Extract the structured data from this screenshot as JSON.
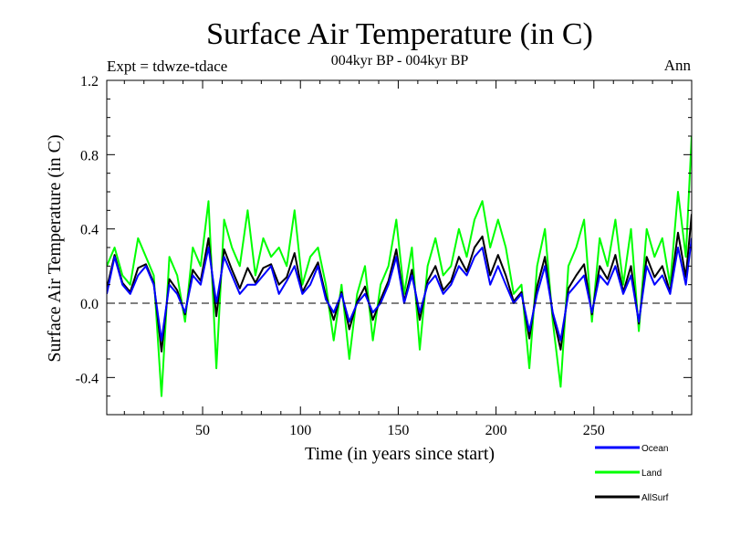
{
  "chart_data": {
    "type": "line",
    "title": "Surface Air Temperature (in C)",
    "subtitle": "004kyr BP - 004kyr BP",
    "experiment_label": "Expt = tdwze-tdace",
    "season_label": "Ann",
    "xlabel": "Time (in years since start)",
    "ylabel": "Surface Air Temperature (in C)",
    "xlim": [
      1,
      300
    ],
    "ylim": [
      -0.6,
      1.2
    ],
    "x_ticks": [
      50,
      100,
      150,
      200,
      250
    ],
    "x_tick_labels": [
      "50",
      "100",
      "150",
      "200",
      "250"
    ],
    "y_ticks": [
      -0.4,
      0.0,
      0.4,
      0.8,
      1.2
    ],
    "y_tick_labels": [
      "-0.4",
      "0.0",
      "0.4",
      "0.8",
      "1.2"
    ],
    "reference_line": 0.0,
    "grid": false,
    "legend_position": "bottom-right, below plot",
    "x": [
      1,
      5,
      9,
      13,
      17,
      21,
      25,
      29,
      33,
      37,
      41,
      45,
      49,
      53,
      57,
      61,
      65,
      69,
      73,
      77,
      81,
      85,
      89,
      93,
      97,
      101,
      105,
      109,
      113,
      117,
      121,
      125,
      129,
      133,
      137,
      141,
      145,
      149,
      153,
      157,
      161,
      165,
      169,
      173,
      177,
      181,
      185,
      189,
      193,
      197,
      201,
      205,
      209,
      213,
      217,
      221,
      225,
      229,
      233,
      237,
      241,
      245,
      249,
      253,
      257,
      261,
      265,
      269,
      273,
      277,
      281,
      285,
      289,
      293,
      297,
      300
    ],
    "series": [
      {
        "name": "Ocean",
        "color": "#0000ff",
        "values": [
          0.05,
          0.25,
          0.1,
          0.05,
          0.15,
          0.2,
          0.1,
          -0.2,
          0.1,
          0.05,
          -0.05,
          0.15,
          0.1,
          0.3,
          0.0,
          0.25,
          0.15,
          0.05,
          0.1,
          0.1,
          0.15,
          0.2,
          0.05,
          0.12,
          0.2,
          0.05,
          0.1,
          0.2,
          0.02,
          -0.05,
          0.05,
          -0.1,
          0.0,
          0.05,
          -0.05,
          0.0,
          0.1,
          0.25,
          0.0,
          0.15,
          -0.05,
          0.1,
          0.15,
          0.05,
          0.1,
          0.2,
          0.15,
          0.25,
          0.3,
          0.1,
          0.2,
          0.1,
          0.0,
          0.05,
          -0.15,
          0.05,
          0.2,
          -0.05,
          -0.2,
          0.05,
          0.1,
          0.15,
          -0.05,
          0.15,
          0.1,
          0.2,
          0.05,
          0.15,
          -0.1,
          0.2,
          0.1,
          0.15,
          0.05,
          0.3,
          0.1,
          0.35
        ]
      },
      {
        "name": "Land",
        "color": "#00ff00",
        "values": [
          0.2,
          0.3,
          0.15,
          0.1,
          0.35,
          0.25,
          0.15,
          -0.5,
          0.25,
          0.15,
          -0.1,
          0.3,
          0.2,
          0.55,
          -0.35,
          0.45,
          0.3,
          0.2,
          0.5,
          0.15,
          0.35,
          0.25,
          0.3,
          0.2,
          0.5,
          0.1,
          0.25,
          0.3,
          0.1,
          -0.2,
          0.1,
          -0.3,
          0.05,
          0.2,
          -0.2,
          0.1,
          0.2,
          0.45,
          0.05,
          0.3,
          -0.25,
          0.2,
          0.35,
          0.15,
          0.2,
          0.4,
          0.25,
          0.45,
          0.55,
          0.3,
          0.45,
          0.3,
          0.05,
          0.1,
          -0.35,
          0.2,
          0.4,
          -0.1,
          -0.45,
          0.2,
          0.3,
          0.45,
          -0.1,
          0.35,
          0.2,
          0.45,
          0.1,
          0.4,
          -0.15,
          0.4,
          0.25,
          0.35,
          0.1,
          0.6,
          0.25,
          0.9
        ]
      },
      {
        "name": "AllSurf",
        "color": "#000000",
        "values": [
          0.08,
          0.26,
          0.11,
          0.06,
          0.19,
          0.21,
          0.11,
          -0.26,
          0.13,
          0.07,
          -0.06,
          0.18,
          0.12,
          0.35,
          -0.07,
          0.29,
          0.18,
          0.08,
          0.19,
          0.11,
          0.19,
          0.21,
          0.1,
          0.14,
          0.27,
          0.06,
          0.14,
          0.22,
          0.04,
          -0.09,
          0.06,
          -0.14,
          0.01,
          0.09,
          -0.09,
          0.02,
          0.12,
          0.29,
          0.01,
          0.18,
          -0.09,
          0.12,
          0.2,
          0.07,
          0.12,
          0.25,
          0.17,
          0.3,
          0.36,
          0.15,
          0.26,
          0.15,
          0.01,
          0.06,
          -0.19,
          0.09,
          0.25,
          -0.06,
          -0.25,
          0.08,
          0.15,
          0.21,
          -0.06,
          0.2,
          0.13,
          0.26,
          0.06,
          0.2,
          -0.11,
          0.25,
          0.14,
          0.2,
          0.06,
          0.38,
          0.14,
          0.48
        ]
      }
    ]
  }
}
